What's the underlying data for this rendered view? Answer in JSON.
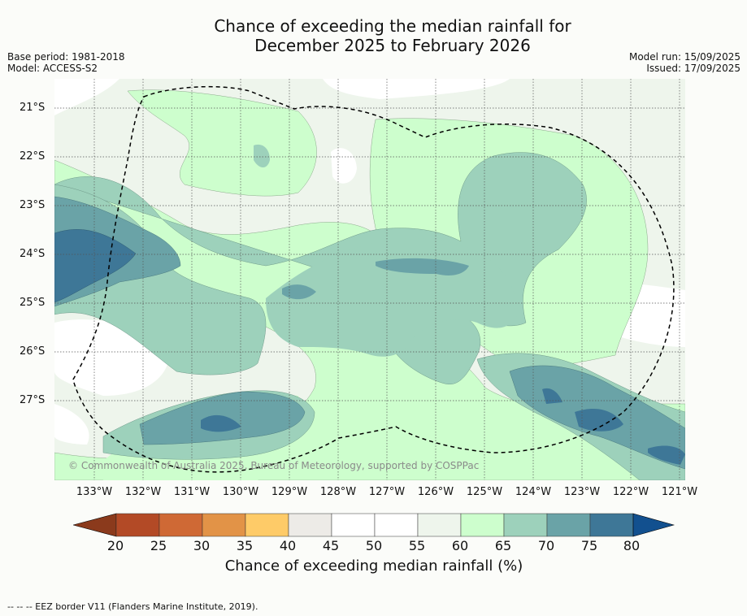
{
  "title_line1": "Chance of exceeding the median rainfall for",
  "title_line2": "December 2025 to February 2026",
  "base_period": "Base period: 1981-2018",
  "model": "Model: ACCESS-S2",
  "model_run": "Model run: 15/09/2025",
  "issued": "Issued: 17/09/2025",
  "lat_labels": [
    "21°S",
    "22°S",
    "23°S",
    "24°S",
    "25°S",
    "26°S",
    "27°S"
  ],
  "lon_labels": [
    "133°W",
    "132°W",
    "131°W",
    "130°W",
    "129°W",
    "128°W",
    "127°W",
    "126°W",
    "125°W",
    "124°W",
    "123°W",
    "122°W",
    "121°W"
  ],
  "copyright": "© Commonwealth of Australia 2025, Bureau of Meteorology, supported by COSPPac",
  "colorbar": {
    "ticks": [
      "20",
      "25",
      "30",
      "35",
      "40",
      "45",
      "50",
      "55",
      "60",
      "65",
      "70",
      "75",
      "80"
    ],
    "label": "Chance of exceeding median rainfall (%)",
    "colors": [
      "#8b3a1c",
      "#b34a26",
      "#cf6935",
      "#e29347",
      "#fecb68",
      "#edebe7",
      "#ffffff",
      "#ffffff",
      "#eef5ec",
      "#cdfecd",
      "#9dd1bb",
      "#6aa3a7",
      "#3e7797",
      "#12508f"
    ]
  },
  "footer": "--  --  -- EEZ border V11 (Flanders Marine Institute, 2019)."
}
